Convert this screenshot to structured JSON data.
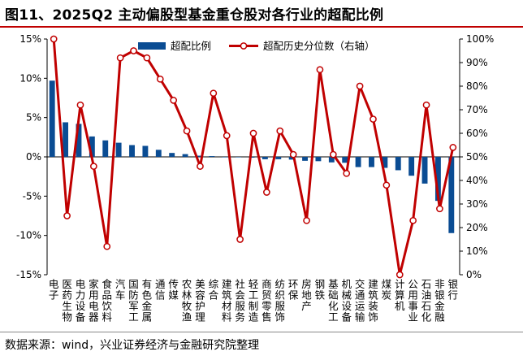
{
  "title": "图11、2025Q2 主动偏股型基金重仓股对各行业的超配比例",
  "source": "数据来源：wind，兴业证券经济与金融研究院整理",
  "chart_data": {
    "type": "bar+line",
    "title": "图11、2025Q2 主动偏股型基金重仓股对各行业的超配比例",
    "categories": [
      "电子",
      "医药生物",
      "电力设备",
      "家用电器",
      "食品饮料",
      "汽车",
      "国防军工",
      "有色金属",
      "通信",
      "传媒",
      "农林牧渔",
      "美容护理",
      "综合",
      "建筑材料",
      "社会服务",
      "轻工制造",
      "商贸零售",
      "纺织服饰",
      "环保",
      "房地产",
      "钢铁",
      "基础化工",
      "机械设备",
      "交通运输",
      "建筑装饰",
      "煤炭",
      "计算机",
      "公用事业",
      "石油石化",
      "非银金融",
      "银行"
    ],
    "series": [
      {
        "name": "超配比例",
        "type": "bar",
        "axis": "left",
        "color": "#0a4c93",
        "values": [
          9.7,
          4.4,
          4.2,
          2.6,
          2.1,
          1.8,
          1.5,
          1.4,
          0.9,
          0.5,
          0.35,
          0.15,
          0.1,
          0.0,
          -0.05,
          -0.1,
          -0.3,
          -0.3,
          -0.35,
          -0.5,
          -0.55,
          -0.7,
          -0.75,
          -1.3,
          -1.3,
          -1.4,
          -1.7,
          -2.4,
          -3.4,
          -5.6,
          -9.7
        ]
      },
      {
        "name": "超配历史分位数（右轴）",
        "type": "line",
        "axis": "right",
        "color": "#c00000",
        "values": [
          100,
          25,
          72,
          46,
          12,
          92,
          95,
          92,
          83,
          74,
          61,
          46,
          77,
          59,
          15,
          60,
          35,
          61,
          51,
          23,
          87,
          51,
          43,
          80,
          66,
          38,
          0,
          23,
          72,
          28,
          54
        ]
      }
    ],
    "y_left": {
      "min": -15,
      "max": 15,
      "step": 5,
      "ticks": [
        "-15%",
        "-10%",
        "-5%",
        "0%",
        "5%",
        "10%",
        "15%"
      ]
    },
    "y_right": {
      "min": 0,
      "max": 100,
      "step": 10,
      "ticks": [
        "0%",
        "10%",
        "20%",
        "30%",
        "40%",
        "50%",
        "60%",
        "70%",
        "80%",
        "90%",
        "100%"
      ]
    },
    "legend_position": "top",
    "grid": false
  }
}
